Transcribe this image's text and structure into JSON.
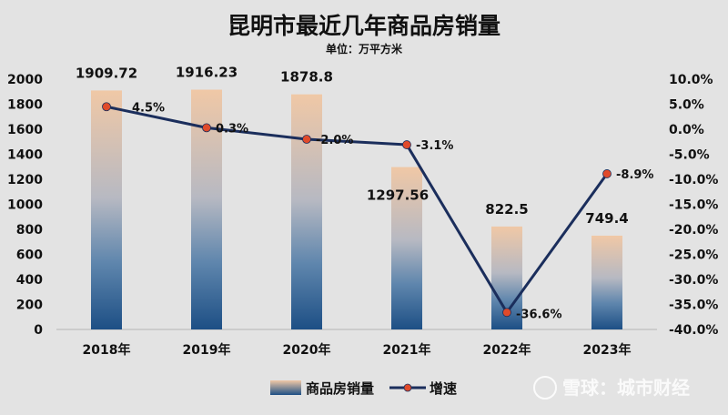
{
  "chart_data": {
    "type": "bar",
    "title": "昆明市最近几年商品房销量",
    "subtitle": "单位：万平方米",
    "categories": [
      "2018年",
      "2019年",
      "2020年",
      "2021年",
      "2022年",
      "2023年"
    ],
    "series": [
      {
        "name": "商品房销量",
        "type": "bar",
        "axis": "left",
        "values": [
          1909.72,
          1916.23,
          1878.8,
          1297.56,
          822.5,
          749.4
        ],
        "labels": [
          "1909.72",
          "1916.23",
          "1878.8",
          "1297.56",
          "822.5",
          "749.4"
        ]
      },
      {
        "name": "增速",
        "type": "line",
        "axis": "right",
        "values": [
          4.5,
          0.3,
          -2.0,
          -3.1,
          -36.6,
          -8.9
        ],
        "labels": [
          "4.5%",
          "0.3%",
          "-2.0%",
          "-3.1%",
          "-36.6%",
          "-8.9%"
        ]
      }
    ],
    "y_left": {
      "lim": [
        0,
        2000
      ],
      "ticks": [
        "0",
        "200",
        "400",
        "600",
        "800",
        "1000",
        "1200",
        "1400",
        "1600",
        "1800",
        "2000"
      ]
    },
    "y_right": {
      "lim": [
        -40,
        10
      ],
      "ticks": [
        "10.0%",
        "5.0%",
        "0.0%",
        "-5.0%",
        "-10.0%",
        "-15.0%",
        "-20.0%",
        "-25.0%",
        "-30.0%",
        "-35.0%",
        "-40.0%"
      ]
    },
    "grid": false,
    "legend_position": "bottom"
  },
  "colors": {
    "bar_top": "#f0c8a6",
    "bar_bottom": "#1d4f85",
    "line": "#1b2e5c",
    "marker": "#e04a2a"
  },
  "watermark": "雪球：城市财经"
}
